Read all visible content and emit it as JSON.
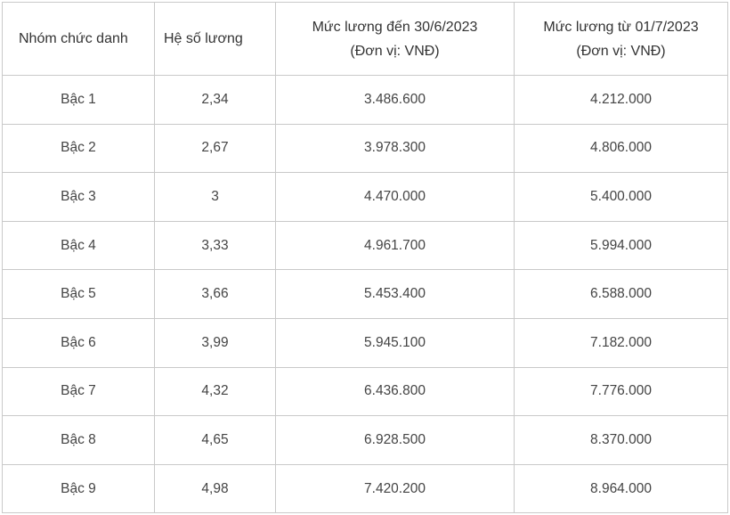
{
  "table": {
    "headers": [
      {
        "line1": "Nhóm chức danh",
        "line2": ""
      },
      {
        "line1": "Hệ số lương",
        "line2": ""
      },
      {
        "line1": "Mức lương đến 30/6/2023",
        "line2": "(Đơn vị: VNĐ)"
      },
      {
        "line1": "Mức lương từ 01/7/2023",
        "line2": "(Đơn vị: VNĐ)"
      }
    ],
    "rows": [
      [
        "Bậc 1",
        "2,34",
        "3.486.600",
        "4.212.000"
      ],
      [
        "Bậc 2",
        "2,67",
        "3.978.300",
        "4.806.000"
      ],
      [
        "Bậc 3",
        "3",
        "4.470.000",
        "5.400.000"
      ],
      [
        "Bậc 4",
        "3,33",
        "4.961.700",
        "5.994.000"
      ],
      [
        "Bậc 5",
        "3,66",
        "5.453.400",
        "6.588.000"
      ],
      [
        "Bậc 6",
        "3,99",
        "5.945.100",
        "7.182.000"
      ],
      [
        "Bậc 7",
        "4,32",
        "6.436.800",
        "7.776.000"
      ],
      [
        "Bậc 8",
        "4,65",
        "6.928.500",
        "8.370.000"
      ],
      [
        "Bậc 9",
        "4,98",
        "7.420.200",
        "8.964.000"
      ]
    ]
  }
}
